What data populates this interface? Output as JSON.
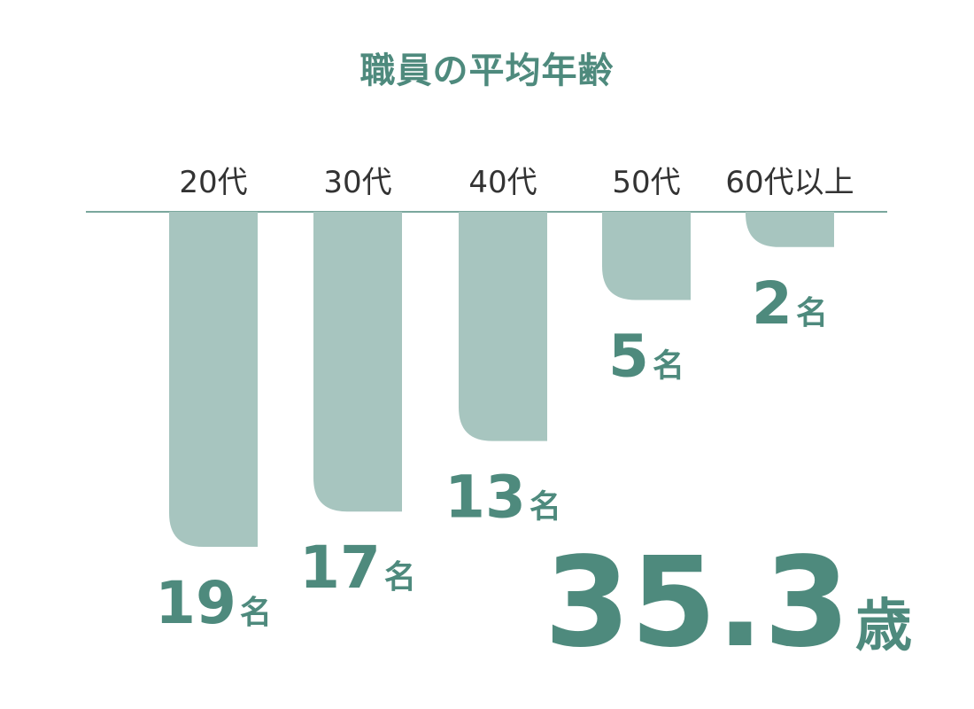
{
  "colors": {
    "title": "#4e8a7d",
    "bar": "#a7c5bf",
    "value_text": "#4e8a7d",
    "category_text": "#333333",
    "axis_line": "#4e8a7d",
    "average_text": "#4e8a7d"
  },
  "chart_data": {
    "type": "bar",
    "orientation": "downward",
    "title": "職員の平均年齢",
    "categories": [
      "20代",
      "30代",
      "40代",
      "50代",
      "60代以上"
    ],
    "values": [
      19,
      17,
      13,
      5,
      2
    ],
    "value_unit": "名",
    "ylim": [
      0,
      19
    ],
    "grid": false,
    "legend": "none"
  },
  "average": {
    "value": "35.3",
    "unit": "歳"
  }
}
